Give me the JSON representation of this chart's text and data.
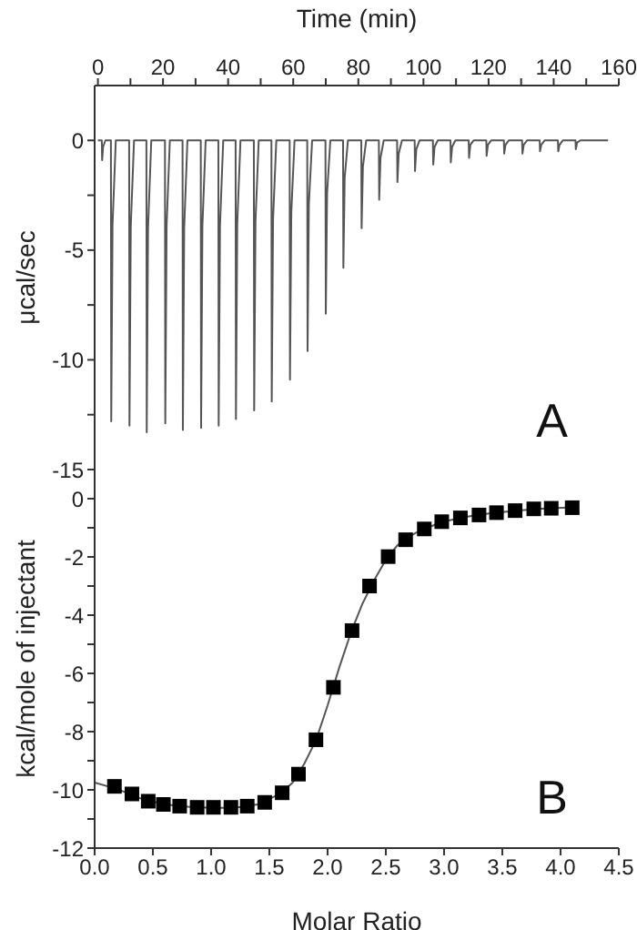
{
  "chart_data": [
    {
      "type": "line",
      "xlabel": "Time (min)",
      "ylabel": "μcal/sec",
      "xlim": [
        -1,
        160
      ],
      "ylim": [
        -15,
        2.5
      ],
      "xticks": [
        0,
        {
          "value": 10,
          "label": null
        },
        20,
        {
          "value": 30,
          "label": null
        },
        40,
        {
          "value": 50,
          "label": null
        },
        60,
        {
          "value": 70,
          "label": null
        },
        80,
        {
          "value": 90,
          "label": null
        },
        100,
        {
          "value": 110,
          "label": null
        },
        120,
        {
          "value": 130,
          "label": null
        },
        140,
        {
          "value": 150,
          "label": null
        },
        160
      ],
      "yticks": [
        -15,
        {
          "value": -12.5,
          "label": null
        },
        -10,
        {
          "value": -7.5,
          "label": null
        },
        -5,
        {
          "value": -2.5,
          "label": null
        },
        0
      ],
      "annotations": [
        "A"
      ],
      "grid": false,
      "series": [
        {
          "color": "#555555",
          "marker": "none",
          "x": [
            0,
            1.2,
            1.3,
            1.6,
            2.3,
            4.0,
            4.1,
            4.5,
            5.5,
            9.6,
            9.7,
            10.1,
            11.1,
            14.9,
            15,
            15.4,
            16.4,
            20.6,
            20.7,
            21.1,
            22.1,
            26,
            26.1,
            26.5,
            27.5,
            31.6,
            31.7,
            32.1,
            33.1,
            37,
            37.1,
            37.5,
            38.5,
            42.3,
            42.4,
            42.8,
            43.8,
            47.9,
            48,
            48.4,
            49.4,
            53.3,
            53.4,
            53.8,
            54.8,
            58.9,
            59,
            59.4,
            60.4,
            64.3,
            64.4,
            64.8,
            65.8,
            69.9,
            70,
            70.4,
            71.4,
            75.3,
            75.4,
            75.8,
            76.8,
            80.9,
            81,
            81.4,
            82.4,
            86.3,
            86.4,
            86.8,
            87.8,
            91.9,
            92,
            92.4,
            93.4,
            97.3,
            97.4,
            97.8,
            98.8,
            102.9,
            103,
            103.4,
            104.4,
            108.3,
            108.4,
            108.8,
            109.8,
            113.9,
            114,
            114.4,
            115.4,
            119.3,
            119.4,
            119.8,
            120.8,
            124.7,
            124.8,
            125.2,
            126.2,
            130.3,
            130.4,
            130.8,
            131.8,
            135.7,
            135.8,
            136.2,
            137.2,
            141.3,
            141.4,
            141.8,
            142.8,
            146.7,
            146.8,
            147.2,
            148.2,
            156.7
          ],
          "values": [
            0,
            0,
            -0.9,
            -0.3,
            0,
            0,
            -12.8,
            -3.8,
            0,
            0,
            -13.0,
            -3.9,
            0,
            0,
            -13.3,
            -4,
            0,
            0,
            -12.9,
            -3.9,
            0,
            0,
            -13.2,
            -4,
            0,
            0,
            -13.1,
            -3.9,
            0,
            0,
            -13.0,
            -3.9,
            0,
            0,
            -12.7,
            -3.8,
            0,
            0,
            -12.3,
            -3.7,
            0,
            0,
            -11.9,
            -3.6,
            0,
            0,
            -10.9,
            -3.3,
            0,
            0,
            -9.6,
            -2.9,
            0,
            0,
            -7.9,
            -2.4,
            0,
            0,
            -5.8,
            -1.7,
            0,
            0,
            -4.0,
            -1.2,
            0,
            0,
            -2.7,
            -0.8,
            0,
            0,
            -1.9,
            -0.6,
            0,
            0,
            -1.4,
            -0.4,
            0,
            0,
            -1.1,
            -0.3,
            0,
            0,
            -1.0,
            -0.3,
            0,
            0,
            -0.8,
            -0.2,
            0,
            0,
            -0.7,
            -0.2,
            0,
            0,
            -0.6,
            -0.2,
            0,
            0,
            -0.6,
            -0.2,
            0,
            0,
            -0.5,
            -0.2,
            0,
            0,
            -0.5,
            -0.2,
            0,
            0,
            -0.4,
            -0.1,
            0,
            0
          ]
        }
      ]
    },
    {
      "type": "scatter",
      "xlabel": "Molar Ratio",
      "ylabel": "kcal/mole of injectant",
      "xlim": [
        0,
        4.5
      ],
      "ylim": [
        -12,
        1
      ],
      "xticks": [
        {
          "value": 0,
          "label": "0.0"
        },
        0.5,
        {
          "value": 1,
          "label": "1.0"
        },
        1.5,
        {
          "value": 2,
          "label": "2.0"
        },
        2.5,
        {
          "value": 3,
          "label": "3.0"
        },
        3.5,
        {
          "value": 4,
          "label": "4.0"
        },
        4.5
      ],
      "yticks": [
        -12,
        {
          "value": -11,
          "label": null
        },
        -10,
        {
          "value": -9,
          "label": null
        },
        -8,
        {
          "value": -7,
          "label": null
        },
        -6,
        {
          "value": -5,
          "label": null
        },
        -4,
        {
          "value": -3,
          "label": null
        },
        -2,
        {
          "value": -1,
          "label": null
        },
        0
      ],
      "annotations": [
        "B"
      ],
      "grid": false,
      "series": [
        {
          "type": "line",
          "color": "#555555",
          "marker": "none",
          "x": [
            0,
            0.2,
            0.4,
            0.6,
            0.8,
            1.0,
            1.2,
            1.4,
            1.6,
            1.7,
            1.8,
            1.9,
            2.0,
            2.1,
            2.2,
            2.3,
            2.4,
            2.5,
            2.6,
            2.7,
            2.8,
            3.0,
            3.2,
            3.4,
            3.6,
            3.8,
            4.1
          ],
          "values": [
            -9.75,
            -9.98,
            -10.3,
            -10.5,
            -10.58,
            -10.62,
            -10.62,
            -10.5,
            -10.12,
            -9.75,
            -9.1,
            -8.3,
            -7.1,
            -5.8,
            -4.6,
            -3.6,
            -2.8,
            -2.1,
            -1.6,
            -1.3,
            -1.08,
            -0.78,
            -0.62,
            -0.5,
            -0.42,
            -0.35,
            -0.3
          ]
        },
        {
          "color": "#000000",
          "marker": "square",
          "x": [
            0.17,
            0.32,
            0.46,
            0.59,
            0.73,
            0.88,
            1.02,
            1.17,
            1.31,
            1.46,
            1.61,
            1.75,
            1.9,
            2.05,
            2.21,
            2.36,
            2.52,
            2.67,
            2.83,
            2.98,
            3.14,
            3.3,
            3.45,
            3.61,
            3.77,
            3.92,
            4.1
          ],
          "values": [
            -9.88,
            -10.14,
            -10.39,
            -10.5,
            -10.56,
            -10.6,
            -10.6,
            -10.6,
            -10.56,
            -10.43,
            -10.1,
            -9.46,
            -8.28,
            -6.48,
            -4.53,
            -3.0,
            -1.99,
            -1.41,
            -1.04,
            -0.79,
            -0.66,
            -0.56,
            -0.48,
            -0.41,
            -0.35,
            -0.33,
            -0.31
          ]
        }
      ]
    }
  ]
}
